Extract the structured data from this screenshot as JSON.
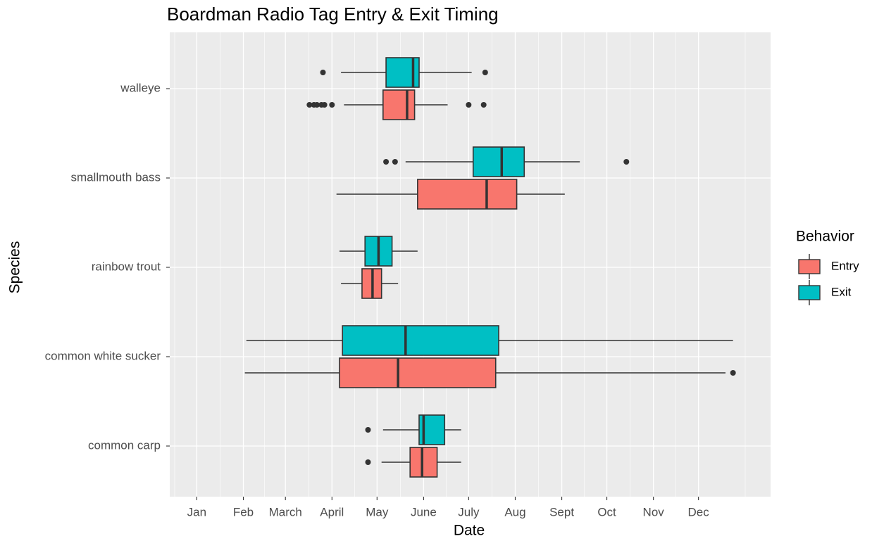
{
  "chart_data": {
    "type": "boxplot",
    "title": "Boardman Radio Tag Entry & Exit Timing",
    "x_label": "Date",
    "y_label": "Species",
    "legend_title": "Behavior",
    "categories": [
      "walleye",
      "smallmouth bass",
      "rainbow trout",
      "common white sucker",
      "common carp"
    ],
    "xlim": [
      -17,
      383
    ],
    "xticks": [
      {
        "value": 1,
        "label": "Jan"
      },
      {
        "value": 32,
        "label": "Feb"
      },
      {
        "value": 60,
        "label": "March"
      },
      {
        "value": 91,
        "label": "April"
      },
      {
        "value": 121,
        "label": "May"
      },
      {
        "value": 152,
        "label": "June"
      },
      {
        "value": 182,
        "label": "July"
      },
      {
        "value": 213,
        "label": "Aug"
      },
      {
        "value": 244,
        "label": "Sept"
      },
      {
        "value": 274,
        "label": "Oct"
      },
      {
        "value": 305,
        "label": "Nov"
      },
      {
        "value": 335,
        "label": "Dec"
      }
    ],
    "grid": true,
    "series": [
      {
        "name": "Entry",
        "color": "#F8766D",
        "boxes": [
          {
            "whislo": 99,
            "q1": 125,
            "med": 141,
            "q3": 146,
            "whishi": 168,
            "fliers": [
              76,
              79,
              81,
              84,
              86,
              91,
              182,
              192
            ]
          },
          {
            "whislo": 94,
            "q1": 148,
            "med": 194,
            "q3": 214,
            "whishi": 246,
            "fliers": []
          },
          {
            "whislo": 97,
            "q1": 111,
            "med": 118,
            "q3": 124,
            "whishi": 135,
            "fliers": []
          },
          {
            "whislo": 33,
            "q1": 96,
            "med": 135,
            "q3": 200,
            "whishi": 353,
            "fliers": [
              358
            ]
          },
          {
            "whislo": 124,
            "q1": 143,
            "med": 151,
            "q3": 161,
            "whishi": 177,
            "fliers": [
              115
            ]
          }
        ]
      },
      {
        "name": "Exit",
        "color": "#00BFC4",
        "boxes": [
          {
            "whislo": 97,
            "q1": 127,
            "med": 145,
            "q3": 149,
            "whishi": 184,
            "fliers": [
              85,
              193
            ]
          },
          {
            "whislo": 140,
            "q1": 185,
            "med": 204,
            "q3": 219,
            "whishi": 256,
            "fliers": [
              127,
              133,
              287
            ]
          },
          {
            "whislo": 96,
            "q1": 113,
            "med": 122,
            "q3": 131,
            "whishi": 148,
            "fliers": []
          },
          {
            "whislo": 34,
            "q1": 98,
            "med": 140,
            "q3": 202,
            "whishi": 358,
            "fliers": []
          },
          {
            "whislo": 125,
            "q1": 149,
            "med": 152,
            "q3": 166,
            "whishi": 177,
            "fliers": [
              115
            ]
          }
        ]
      }
    ]
  }
}
